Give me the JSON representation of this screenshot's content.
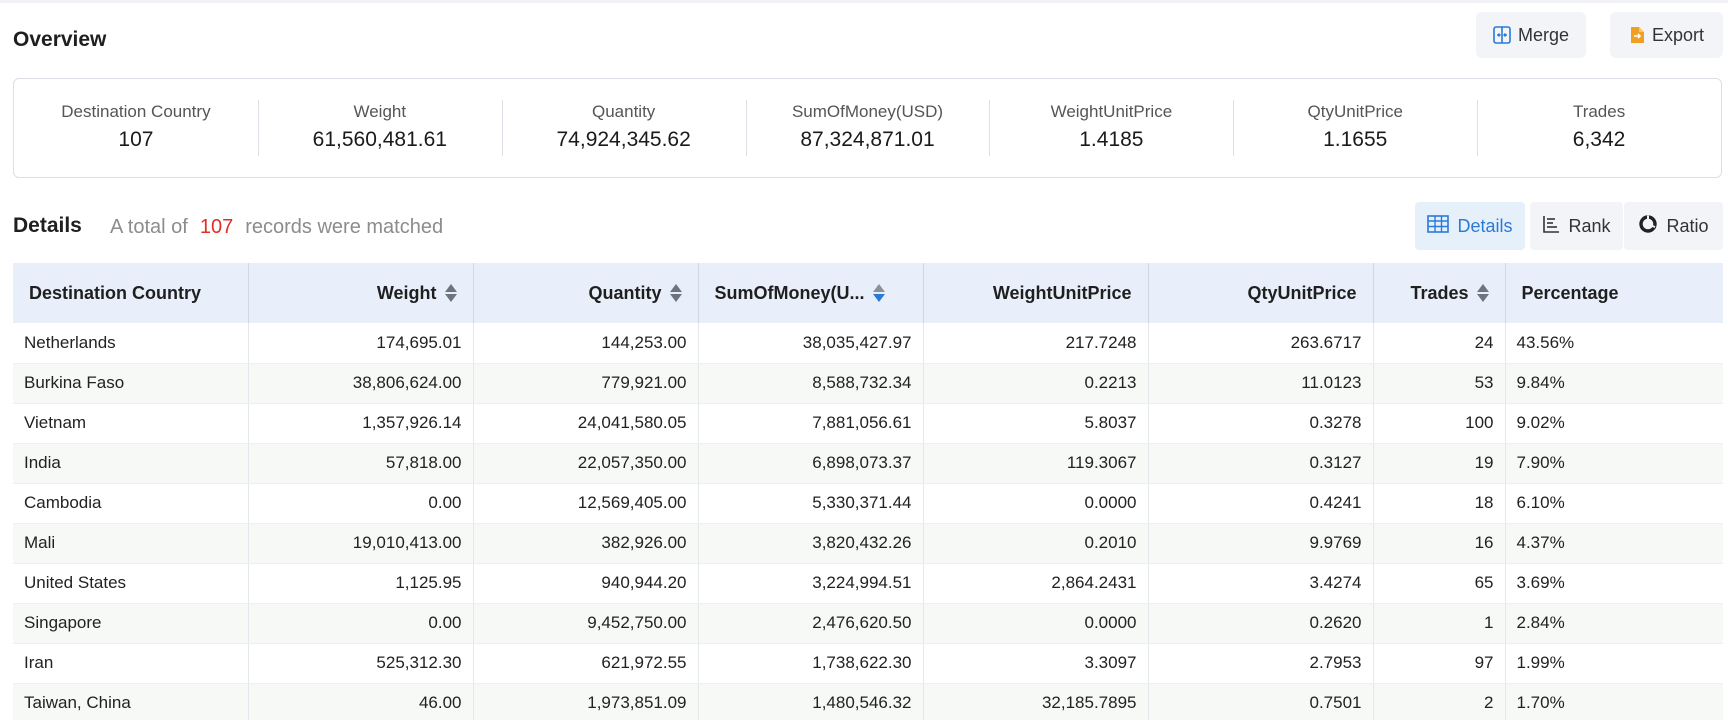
{
  "overview": {
    "title": "Overview",
    "merge_label": "Merge",
    "export_label": "Export",
    "stats": [
      {
        "label": "Destination Country",
        "value": "107"
      },
      {
        "label": "Weight",
        "value": "61,560,481.61"
      },
      {
        "label": "Quantity",
        "value": "74,924,345.62"
      },
      {
        "label": "SumOfMoney(USD)",
        "value": "87,324,871.01"
      },
      {
        "label": "WeightUnitPrice",
        "value": "1.4185"
      },
      {
        "label": "QtyUnitPrice",
        "value": "1.1655"
      },
      {
        "label": "Trades",
        "value": "6,342"
      }
    ]
  },
  "details": {
    "title": "Details",
    "info_prefix": "A total of",
    "info_count": "107",
    "info_suffix": "records were matched",
    "views": {
      "details": "Details",
      "rank": "Rank",
      "ratio": "Ratio"
    },
    "accent": "#2a7ad6",
    "count_color": "#e0302a"
  },
  "table": {
    "headers": [
      "Destination Country",
      "Weight",
      "Quantity",
      "SumOfMoney(U...",
      "WeightUnitPrice",
      "QtyUnitPrice",
      "Trades",
      "Percentage"
    ],
    "rows": [
      [
        "Netherlands",
        "174,695.01",
        "144,253.00",
        "38,035,427.97",
        "217.7248",
        "263.6717",
        "24",
        "43.56%"
      ],
      [
        "Burkina Faso",
        "38,806,624.00",
        "779,921.00",
        "8,588,732.34",
        "0.2213",
        "11.0123",
        "53",
        "9.84%"
      ],
      [
        "Vietnam",
        "1,357,926.14",
        "24,041,580.05",
        "7,881,056.61",
        "5.8037",
        "0.3278",
        "100",
        "9.02%"
      ],
      [
        "India",
        "57,818.00",
        "22,057,350.00",
        "6,898,073.37",
        "119.3067",
        "0.3127",
        "19",
        "7.90%"
      ],
      [
        "Cambodia",
        "0.00",
        "12,569,405.00",
        "5,330,371.44",
        "0.0000",
        "0.4241",
        "18",
        "6.10%"
      ],
      [
        "Mali",
        "19,010,413.00",
        "382,926.00",
        "3,820,432.26",
        "0.2010",
        "9.9769",
        "16",
        "4.37%"
      ],
      [
        "United States",
        "1,125.95",
        "940,944.20",
        "3,224,994.51",
        "2,864.2431",
        "3.4274",
        "65",
        "3.69%"
      ],
      [
        "Singapore",
        "0.00",
        "9,452,750.00",
        "2,476,620.50",
        "0.0000",
        "0.2620",
        "1",
        "2.84%"
      ],
      [
        "Iran",
        "525,312.30",
        "621,972.55",
        "1,738,622.30",
        "3.3097",
        "2.7953",
        "97",
        "1.99%"
      ],
      [
        "Taiwan, China",
        "46.00",
        "1,973,851.09",
        "1,480,546.32",
        "32,185.7895",
        "0.7501",
        "2",
        "1.70%"
      ]
    ]
  }
}
